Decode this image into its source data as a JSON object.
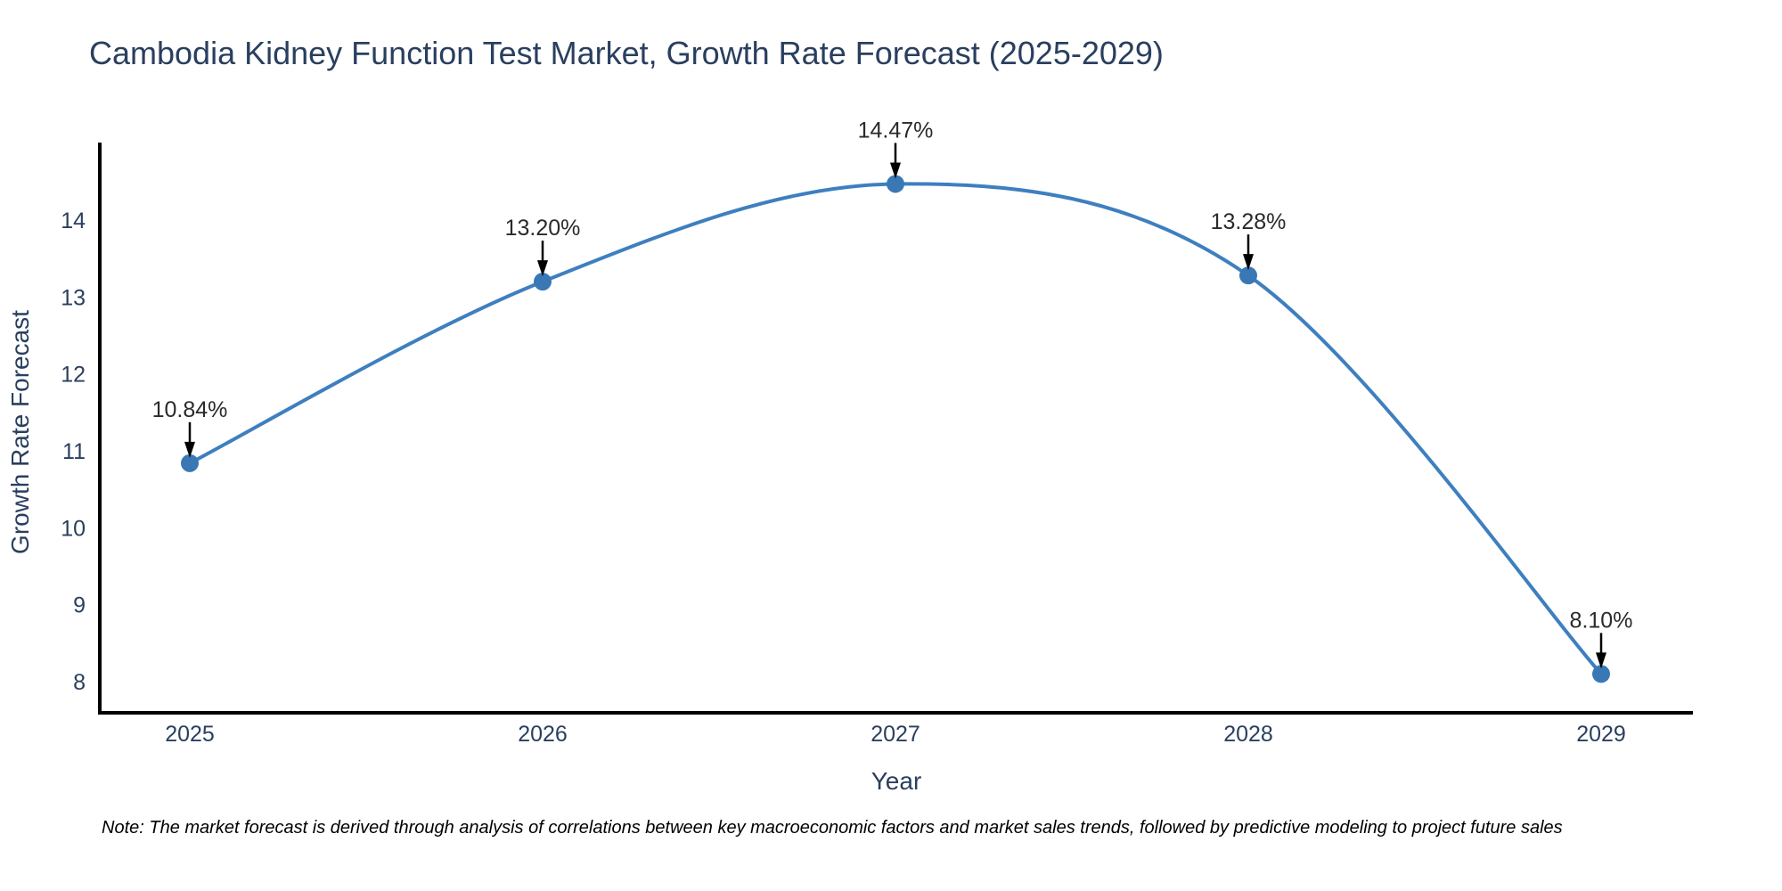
{
  "chart_data": {
    "type": "line",
    "title": "Cambodia Kidney Function Test Market, Growth Rate Forecast (2025-2029)",
    "x": [
      "2025",
      "2026",
      "2027",
      "2028",
      "2029"
    ],
    "y": [
      10.84,
      13.2,
      14.47,
      13.28,
      8.1
    ],
    "point_labels": [
      "10.84%",
      "13.20%",
      "14.47%",
      "13.28%",
      "8.10%"
    ],
    "xlabel": "Year",
    "ylabel": "Growth Rate Forecast",
    "yticks": [
      8,
      9,
      10,
      11,
      12,
      13,
      14
    ],
    "ylim": [
      7.595,
      15.008
    ],
    "line_shape": "spline",
    "grid": false,
    "legend_position": "none",
    "colors": {
      "line": "#3e7fbf",
      "marker": "#3a78b5",
      "axis_line": "#000000",
      "axis_text": "#2a3f5f",
      "annotation_text": "#2a2a2a",
      "annotation_arrow": "#000000",
      "background": "#ffffff"
    }
  },
  "note": {
    "text": "Note: The market forecast is derived through analysis of correlations between key macroeconomic factors and market sales trends, followed by predictive modeling to project future sales"
  }
}
